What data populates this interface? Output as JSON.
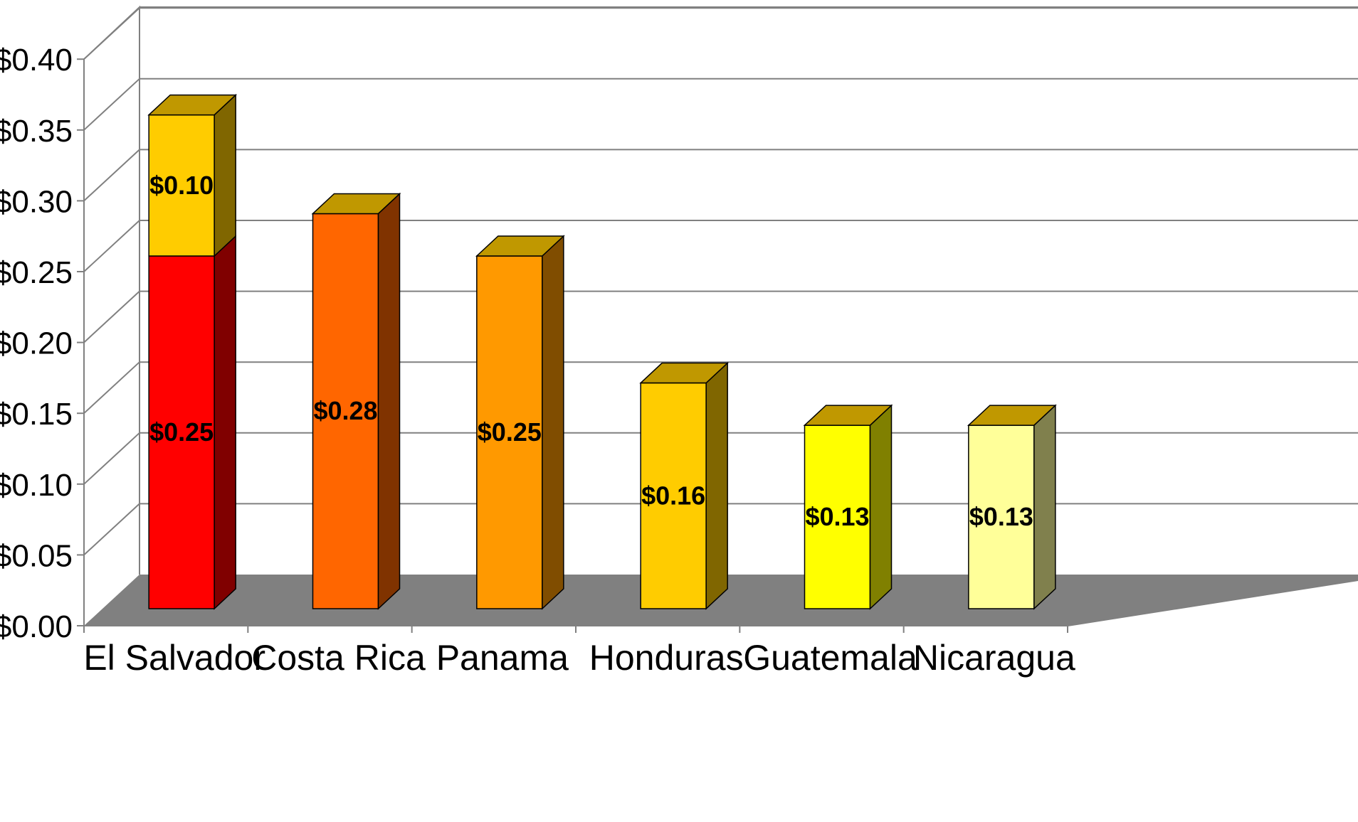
{
  "chart_data": {
    "type": "bar",
    "stacked": true,
    "three_d": true,
    "title": "",
    "xlabel": "",
    "ylabel": "",
    "ylim": [
      0,
      0.4
    ],
    "y_tick_step": 0.05,
    "y_tick_labels": [
      "$0.00",
      "$0.05",
      "$0.10",
      "$0.15",
      "$0.20",
      "$0.25",
      "$0.30",
      "$0.35",
      "$0.40"
    ],
    "grid": true,
    "legend": "none",
    "categories": [
      "El Salvador",
      "Costa Rica",
      "Panama",
      "Honduras",
      "Guatemala",
      "Nicaragua"
    ],
    "series": [
      {
        "values": [
          0.25,
          0.28,
          0.25,
          0.16,
          0.13,
          0.13
        ],
        "labels": [
          "$0.25",
          "$0.28",
          "$0.25",
          "$0.16",
          "$0.13",
          "$0.13"
        ],
        "colors": [
          "#ff0000",
          "#ff6600",
          "#ff9900",
          "#ffcc00",
          "#ffff00",
          "#ffff99"
        ],
        "side_colors": [
          "#800000",
          "#803300",
          "#804d00",
          "#806600",
          "#808000",
          "#80804d"
        ]
      },
      {
        "values": [
          0.1,
          0,
          0,
          0,
          0,
          0
        ],
        "labels": [
          "$0.10",
          "",
          "",
          "",
          "",
          ""
        ],
        "colors": [
          "#ffcc00",
          "#ffcc00",
          "#ffcc00",
          "#ffcc00",
          "#ffcc00",
          "#ffcc00"
        ],
        "side_colors": [
          "#806600",
          "#806600",
          "#806600",
          "#806600",
          "#806600",
          "#806600"
        ]
      }
    ],
    "top_face_color": "#c09800",
    "floor_color": "#808080",
    "grid_color": "#808080",
    "axis_color": "#808080"
  }
}
